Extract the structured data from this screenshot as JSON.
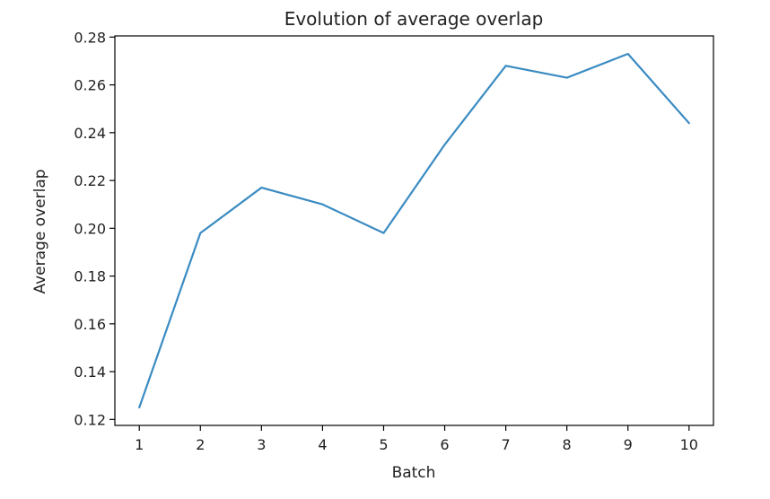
{
  "chart_data": {
    "type": "line",
    "title": "Evolution of average overlap",
    "xlabel": "Batch",
    "ylabel": "Average overlap",
    "x": [
      1,
      2,
      3,
      4,
      5,
      6,
      7,
      8,
      9,
      10
    ],
    "series": [
      {
        "values": [
          0.125,
          0.198,
          0.217,
          0.21,
          0.198,
          0.235,
          0.268,
          0.263,
          0.273,
          0.244
        ],
        "color": "#3a8bc2"
      }
    ],
    "x_ticks": [
      "1",
      "2",
      "3",
      "4",
      "5",
      "6",
      "7",
      "8",
      "9",
      "10"
    ],
    "y_ticks": [
      "0.12",
      "0.14",
      "0.16",
      "0.18",
      "0.20",
      "0.22",
      "0.24",
      "0.26",
      "0.28"
    ],
    "xlim": [
      0.6,
      10.4
    ],
    "ylim": [
      0.1175,
      0.2805
    ],
    "grid": false,
    "legend": "none"
  }
}
